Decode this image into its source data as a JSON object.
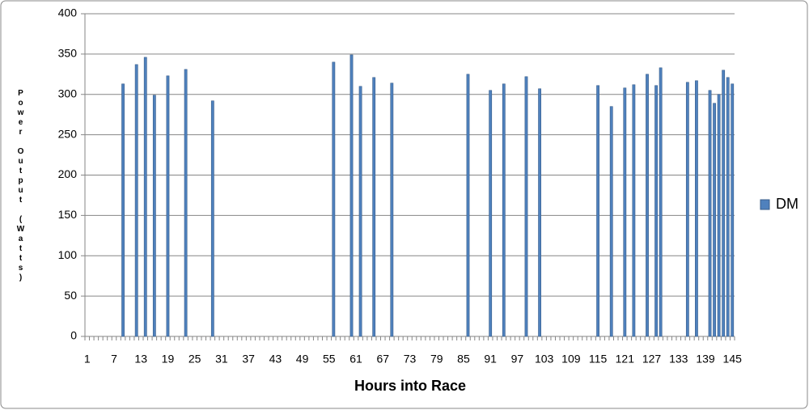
{
  "chart_data": {
    "type": "bar",
    "x_label": "Hours into Race",
    "y_label": "Power Output (Watts)",
    "categories": [
      1,
      null,
      null,
      null,
      null,
      null,
      7,
      null,
      null,
      null,
      null,
      null,
      13,
      null,
      null,
      null,
      null,
      null,
      19,
      null,
      null,
      null,
      null,
      null,
      25,
      null,
      null,
      null,
      null,
      null,
      31,
      null,
      null,
      null,
      null,
      null,
      37,
      null,
      null,
      null,
      null,
      null,
      43,
      null,
      null,
      null,
      null,
      null,
      49,
      null,
      null,
      null,
      null,
      null,
      55,
      null,
      null,
      null,
      null,
      null,
      61,
      null,
      null,
      null,
      null,
      null,
      67,
      null,
      null,
      null,
      null,
      null,
      73,
      null,
      null,
      null,
      null,
      null,
      79,
      null,
      null,
      null,
      null,
      null,
      85,
      null,
      null,
      null,
      null,
      null,
      91,
      null,
      null,
      null,
      null,
      null,
      97,
      null,
      null,
      null,
      null,
      null,
      103,
      null,
      null,
      null,
      null,
      null,
      109,
      null,
      null,
      null,
      null,
      null,
      115,
      null,
      null,
      null,
      null,
      null,
      121,
      null,
      null,
      null,
      null,
      null,
      127,
      null,
      null,
      null,
      null,
      null,
      133,
      null,
      null,
      null,
      null,
      null,
      139,
      null,
      null,
      null,
      null,
      null,
      145
    ],
    "series": [
      {
        "name": "DM",
        "color": "#4f81bd",
        "values": [
          null,
          null,
          null,
          null,
          null,
          null,
          null,
          null,
          313,
          null,
          null,
          337,
          null,
          346,
          null,
          299,
          null,
          null,
          323,
          null,
          null,
          null,
          331,
          null,
          null,
          null,
          null,
          null,
          292,
          null,
          null,
          null,
          null,
          null,
          null,
          null,
          null,
          null,
          null,
          null,
          null,
          null,
          null,
          null,
          null,
          null,
          null,
          null,
          null,
          null,
          null,
          null,
          null,
          null,
          null,
          340,
          null,
          null,
          null,
          349,
          null,
          310,
          null,
          null,
          321,
          null,
          null,
          null,
          314,
          null,
          null,
          null,
          null,
          null,
          null,
          null,
          null,
          null,
          null,
          null,
          null,
          null,
          null,
          null,
          null,
          325,
          null,
          null,
          null,
          null,
          305,
          null,
          null,
          313,
          null,
          null,
          null,
          null,
          322,
          null,
          null,
          307,
          null,
          null,
          null,
          null,
          null,
          null,
          null,
          null,
          null,
          null,
          null,
          null,
          311,
          null,
          null,
          285,
          null,
          null,
          308,
          null,
          312,
          null,
          null,
          325,
          null,
          311,
          333,
          null,
          null,
          null,
          null,
          null,
          315,
          null,
          317,
          null,
          null,
          305,
          289,
          300,
          330,
          321,
          313
        ]
      }
    ],
    "ylim": [
      0,
      400
    ],
    "yticks": [
      0,
      50,
      100,
      150,
      200,
      250,
      300,
      350,
      400
    ],
    "grid": true,
    "legend": "right"
  }
}
